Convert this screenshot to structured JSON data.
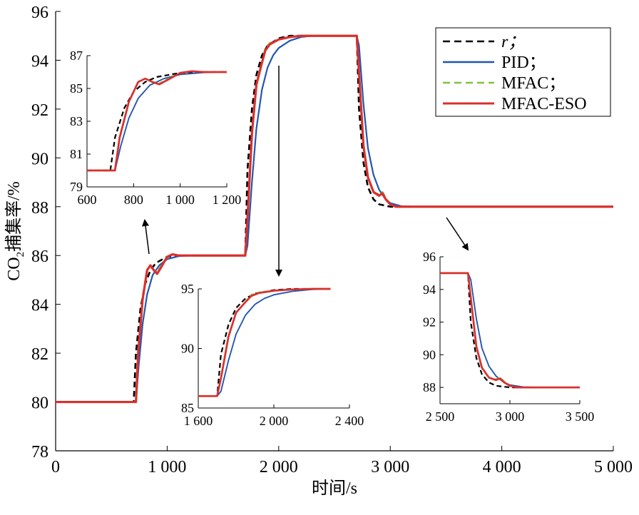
{
  "chart_data": {
    "type": "line",
    "xlabel": "时间/s",
    "ylabel_prefix": "CO",
    "ylabel_sub": "2",
    "ylabel_suffix": "捕集率/%",
    "xlim": [
      0,
      5000
    ],
    "ylim": [
      78,
      96
    ],
    "x_ticks": [
      0,
      1000,
      2000,
      3000,
      4000,
      5000
    ],
    "x_tick_labels": [
      "0",
      "1 000",
      "2 000",
      "3 000",
      "4 000",
      "5 000"
    ],
    "y_ticks": [
      78,
      80,
      82,
      84,
      86,
      88,
      90,
      92,
      94,
      96
    ],
    "y_tick_labels": [
      "78",
      "80",
      "82",
      "84",
      "86",
      "88",
      "90",
      "92",
      "94",
      "96"
    ],
    "grid": false,
    "legend_position": "top-right",
    "series": [
      {
        "name": "r；",
        "color": "#000000",
        "style": "dashed",
        "italic": true,
        "points": [
          [
            0,
            80
          ],
          [
            700,
            80
          ],
          [
            720,
            82
          ],
          [
            760,
            83.8
          ],
          [
            800,
            84.8
          ],
          [
            850,
            85.4
          ],
          [
            900,
            85.7
          ],
          [
            1000,
            85.95
          ],
          [
            1100,
            86
          ],
          [
            1700,
            86
          ],
          [
            1720,
            89.5
          ],
          [
            1760,
            92
          ],
          [
            1800,
            93.4
          ],
          [
            1850,
            94.2
          ],
          [
            1900,
            94.6
          ],
          [
            2000,
            94.9
          ],
          [
            2100,
            95
          ],
          [
            2700,
            95
          ],
          [
            2720,
            92
          ],
          [
            2760,
            89.8
          ],
          [
            2800,
            88.8
          ],
          [
            2850,
            88.3
          ],
          [
            2900,
            88.1
          ],
          [
            3000,
            88
          ],
          [
            5000,
            88
          ]
        ]
      },
      {
        "name": "PID；",
        "color": "#2255b0",
        "style": "solid",
        "italic": false,
        "points": [
          [
            0,
            80
          ],
          [
            720,
            80
          ],
          [
            745,
            81.5
          ],
          [
            780,
            83.2
          ],
          [
            820,
            84.4
          ],
          [
            870,
            85.2
          ],
          [
            930,
            85.6
          ],
          [
            1000,
            85.85
          ],
          [
            1100,
            85.97
          ],
          [
            1200,
            86
          ],
          [
            1700,
            86
          ],
          [
            1720,
            86.4
          ],
          [
            1760,
            89
          ],
          [
            1800,
            91.2
          ],
          [
            1850,
            92.8
          ],
          [
            1900,
            93.7
          ],
          [
            1950,
            94.2
          ],
          [
            2000,
            94.5
          ],
          [
            2100,
            94.8
          ],
          [
            2200,
            94.95
          ],
          [
            2300,
            95
          ],
          [
            2700,
            95
          ],
          [
            2720,
            94.6
          ],
          [
            2760,
            92.2
          ],
          [
            2800,
            90.4
          ],
          [
            2850,
            89.3
          ],
          [
            2900,
            88.7
          ],
          [
            2950,
            88.35
          ],
          [
            3000,
            88.15
          ],
          [
            3100,
            88.02
          ],
          [
            3200,
            88
          ],
          [
            5000,
            88
          ]
        ]
      },
      {
        "name": "MFAC；",
        "color": "#7fc241",
        "style": "dashed",
        "italic": false,
        "points": [
          [
            0,
            80
          ],
          [
            720,
            80
          ],
          [
            740,
            82
          ],
          [
            780,
            84.2
          ],
          [
            820,
            85.4
          ],
          [
            850,
            85.6
          ],
          [
            880,
            85.4
          ],
          [
            910,
            85.3
          ],
          [
            950,
            85.6
          ],
          [
            1000,
            85.95
          ],
          [
            1050,
            86.05
          ],
          [
            1100,
            86
          ],
          [
            1700,
            86
          ],
          [
            1720,
            87.5
          ],
          [
            1760,
            91
          ],
          [
            1800,
            93
          ],
          [
            1850,
            93.9
          ],
          [
            1880,
            94.5
          ],
          [
            1920,
            94.7
          ],
          [
            2000,
            94.85
          ],
          [
            2100,
            94.95
          ],
          [
            2200,
            95
          ],
          [
            2700,
            95
          ],
          [
            2720,
            93.5
          ],
          [
            2760,
            90.5
          ],
          [
            2800,
            89.2
          ],
          [
            2850,
            88.6
          ],
          [
            2900,
            88.5
          ],
          [
            2930,
            88.6
          ],
          [
            2960,
            88.35
          ],
          [
            3000,
            88.1
          ],
          [
            3050,
            88
          ],
          [
            5000,
            88
          ]
        ]
      },
      {
        "name": "MFAC-ESO",
        "color": "#d9302c",
        "style": "solid",
        "italic": false,
        "points": [
          [
            0,
            80
          ],
          [
            720,
            80
          ],
          [
            740,
            82
          ],
          [
            780,
            84.2
          ],
          [
            820,
            85.4
          ],
          [
            850,
            85.6
          ],
          [
            880,
            85.4
          ],
          [
            910,
            85.25
          ],
          [
            950,
            85.55
          ],
          [
            1000,
            85.95
          ],
          [
            1050,
            86.05
          ],
          [
            1100,
            86
          ],
          [
            1700,
            86
          ],
          [
            1720,
            87.5
          ],
          [
            1760,
            91
          ],
          [
            1800,
            93
          ],
          [
            1850,
            93.9
          ],
          [
            1880,
            94.4
          ],
          [
            1920,
            94.65
          ],
          [
            2000,
            94.85
          ],
          [
            2100,
            94.95
          ],
          [
            2200,
            95
          ],
          [
            2700,
            95
          ],
          [
            2720,
            93.5
          ],
          [
            2760,
            90.5
          ],
          [
            2800,
            89.2
          ],
          [
            2850,
            88.6
          ],
          [
            2900,
            88.45
          ],
          [
            2930,
            88.55
          ],
          [
            2960,
            88.3
          ],
          [
            3000,
            88.1
          ],
          [
            3050,
            88
          ],
          [
            5000,
            88
          ]
        ]
      }
    ],
    "insets": [
      {
        "xlim": [
          600,
          1200
        ],
        "ylim": [
          79,
          87
        ],
        "x_ticks": [
          600,
          800,
          1000,
          1200
        ],
        "x_tick_labels": [
          "600",
          "800",
          "1 000",
          "1 200"
        ],
        "y_ticks": [
          79,
          81,
          83,
          85,
          87
        ],
        "y_tick_labels": [
          "79",
          "81",
          "83",
          "85",
          "87"
        ],
        "xr": [
          600,
          1200
        ]
      },
      {
        "xlim": [
          1600,
          2400
        ],
        "ylim": [
          85,
          95
        ],
        "x_ticks": [
          1600,
          2000,
          2400
        ],
        "x_tick_labels": [
          "1 600",
          "2 000",
          "2 400"
        ],
        "y_ticks": [
          85,
          90,
          95
        ],
        "y_tick_labels": [
          "85",
          "90",
          "95"
        ],
        "xr": [
          1600,
          2300
        ]
      },
      {
        "xlim": [
          2500,
          3500
        ],
        "ylim": [
          87,
          96
        ],
        "x_ticks": [
          2500,
          3000,
          3500
        ],
        "x_tick_labels": [
          "2 500",
          "3 000",
          "3 500"
        ],
        "y_ticks": [
          88,
          90,
          92,
          94,
          96
        ],
        "y_tick_labels": [
          "88",
          "90",
          "92",
          "94",
          "96"
        ],
        "xr": [
          2500,
          3500
        ]
      }
    ]
  }
}
